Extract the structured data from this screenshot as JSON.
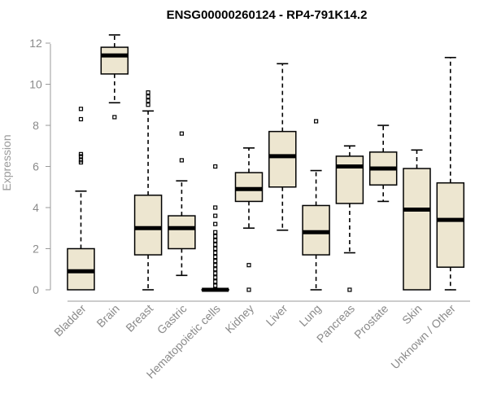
{
  "chart_data": {
    "type": "boxplot",
    "title": "ENSG00000260124 - RP4-791K14.2",
    "xlabel": "",
    "ylabel": "Expression",
    "ylim": [
      0,
      12.4
    ],
    "yticks": [
      0,
      2,
      4,
      6,
      8,
      10,
      12
    ],
    "box_color": "#ede6d0",
    "categories": [
      "Bladder",
      "Brain",
      "Breast",
      "Gastric",
      "Hematopoietic cells",
      "Kidney",
      "Liver",
      "Lung",
      "Pancreas",
      "Prostate",
      "Skin",
      "Unknown / Other"
    ],
    "boxes": [
      {
        "name": "Bladder",
        "min": 0,
        "q1": 0,
        "median": 0.9,
        "q3": 2.0,
        "max": 4.8,
        "outliers": [
          6.2,
          6.3,
          6.5,
          6.6,
          8.3,
          8.8
        ]
      },
      {
        "name": "Brain",
        "min": 9.1,
        "q1": 10.5,
        "median": 11.4,
        "q3": 11.8,
        "max": 12.4,
        "outliers": [
          8.4
        ]
      },
      {
        "name": "Breast",
        "min": 0,
        "q1": 1.7,
        "median": 3.0,
        "q3": 4.6,
        "max": 8.7,
        "outliers": [
          9.0,
          9.2,
          9.4,
          9.6
        ]
      },
      {
        "name": "Gastric",
        "min": 0.7,
        "q1": 2.0,
        "median": 3.0,
        "q3": 3.6,
        "max": 5.3,
        "outliers": [
          6.3,
          7.6
        ]
      },
      {
        "name": "Hematopoietic cells",
        "min": 0,
        "q1": 0,
        "median": 0,
        "q3": 0,
        "max": 0,
        "outliers": [
          0.2,
          0.4,
          0.6,
          0.8,
          1.0,
          1.2,
          1.4,
          1.6,
          1.8,
          2.0,
          2.2,
          2.4,
          2.6,
          2.8,
          3.2,
          3.6,
          4.0,
          6.0
        ]
      },
      {
        "name": "Kidney",
        "min": 3.0,
        "q1": 4.3,
        "median": 4.9,
        "q3": 5.7,
        "max": 6.9,
        "outliers": [
          0,
          1.2
        ]
      },
      {
        "name": "Liver",
        "min": 2.9,
        "q1": 5.0,
        "median": 6.5,
        "q3": 7.7,
        "max": 11.0,
        "outliers": []
      },
      {
        "name": "Lung",
        "min": 0,
        "q1": 1.7,
        "median": 2.8,
        "q3": 4.1,
        "max": 5.8,
        "outliers": [
          8.2
        ]
      },
      {
        "name": "Pancreas",
        "min": 1.8,
        "q1": 4.2,
        "median": 6.0,
        "q3": 6.5,
        "max": 7.0,
        "outliers": [
          0
        ]
      },
      {
        "name": "Prostate",
        "min": 4.3,
        "q1": 5.1,
        "median": 5.9,
        "q3": 6.7,
        "max": 8.0,
        "outliers": []
      },
      {
        "name": "Skin",
        "min": 0,
        "q1": 0,
        "median": 3.9,
        "q3": 5.9,
        "max": 6.8,
        "outliers": []
      },
      {
        "name": "Unknown / Other",
        "min": 0,
        "q1": 1.1,
        "median": 3.4,
        "q3": 5.2,
        "max": 11.3,
        "outliers": []
      }
    ]
  }
}
